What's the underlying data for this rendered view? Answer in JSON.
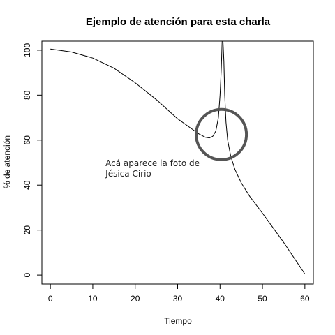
{
  "chart_data": {
    "type": "line",
    "title": "Ejemplo de atención para esta charla",
    "xlabel": "Tiempo",
    "ylabel": "% de atención",
    "xlim": [
      -2,
      62
    ],
    "ylim": [
      -4,
      104
    ],
    "x_ticks": [
      0,
      10,
      20,
      30,
      40,
      50,
      60
    ],
    "y_ticks": [
      0,
      20,
      40,
      60,
      80,
      100
    ],
    "grid": false,
    "series": [
      {
        "color": "#000000",
        "points": [
          [
            0,
            100.5
          ],
          [
            5,
            99.2
          ],
          [
            10,
            96.5
          ],
          [
            15,
            92.0
          ],
          [
            20,
            85.5
          ],
          [
            25,
            78.0
          ],
          [
            30,
            69.5
          ],
          [
            33,
            65.5
          ],
          [
            35,
            62.8
          ],
          [
            36.5,
            61.3
          ],
          [
            37.5,
            61.0
          ],
          [
            38.3,
            61.7
          ],
          [
            39.0,
            64.0
          ],
          [
            39.6,
            70.0
          ],
          [
            40.0,
            80.0
          ],
          [
            40.3,
            92.0
          ],
          [
            40.5,
            104
          ],
          [
            40.7,
            104
          ],
          [
            40.9,
            95.0
          ],
          [
            41.1,
            80.0
          ],
          [
            41.4,
            68.0
          ],
          [
            41.8,
            60.0
          ],
          [
            42.5,
            53.0
          ],
          [
            43.5,
            47.0
          ],
          [
            45.0,
            41.0
          ],
          [
            47.0,
            35.0
          ],
          [
            50.0,
            27.5
          ],
          [
            55.0,
            14.5
          ],
          [
            60.0,
            0.5
          ]
        ]
      }
    ],
    "annotations": [
      {
        "type": "circle",
        "x": 40.3,
        "y": 62.5,
        "color": "#555555"
      },
      {
        "type": "text",
        "lines": [
          "Acá aparece la foto de",
          "Jésica Cirio"
        ],
        "x": 13,
        "y": 48.5
      }
    ]
  }
}
